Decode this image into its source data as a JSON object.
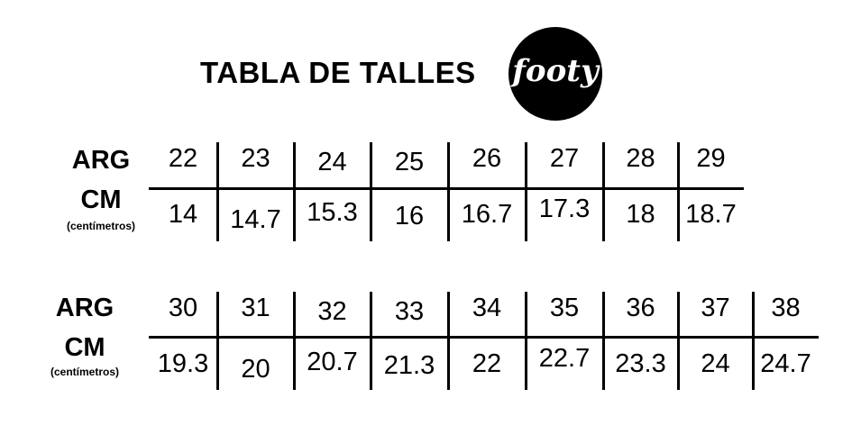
{
  "header": {
    "title": "TABLA DE TALLES",
    "logo_text": "footy"
  },
  "tables": [
    {
      "arg_label": "ARG",
      "cm_label": "CM",
      "cm_sublabel": "(centímetros)",
      "arg": [
        "22",
        "23",
        "24",
        "25",
        "26",
        "27",
        "28",
        "29"
      ],
      "cm": [
        "14",
        "14.7",
        "15.3",
        "16",
        "16.7",
        "17.3",
        "18",
        "18.7"
      ]
    },
    {
      "arg_label": "ARG",
      "cm_label": "CM",
      "cm_sublabel": "(centímetros)",
      "arg": [
        "30",
        "31",
        "32",
        "33",
        "34",
        "35",
        "36",
        "37",
        "38"
      ],
      "cm": [
        "19.3",
        "20",
        "20.7",
        "21.3",
        "22",
        "22.7",
        "23.3",
        "24",
        "24.7"
      ]
    }
  ]
}
